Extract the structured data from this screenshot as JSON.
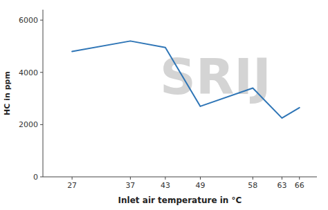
{
  "chart_data": {
    "type": "line",
    "x": [
      27,
      37,
      43,
      49,
      58,
      63,
      66
    ],
    "values": [
      4800,
      5200,
      4950,
      2700,
      3400,
      2250,
      2650
    ],
    "color": "#2E75B6",
    "xlabel": "Inlet air temperature in °C",
    "ylabel": "HC in ppm",
    "xlim": [
      22,
      69
    ],
    "ylim": [
      0,
      6400
    ],
    "xticks": [
      27,
      37,
      43,
      49,
      58,
      63,
      66
    ],
    "yticks": [
      0,
      2000,
      4000,
      6000
    ],
    "annotations": [
      "SRIJ"
    ],
    "grid": false
  }
}
